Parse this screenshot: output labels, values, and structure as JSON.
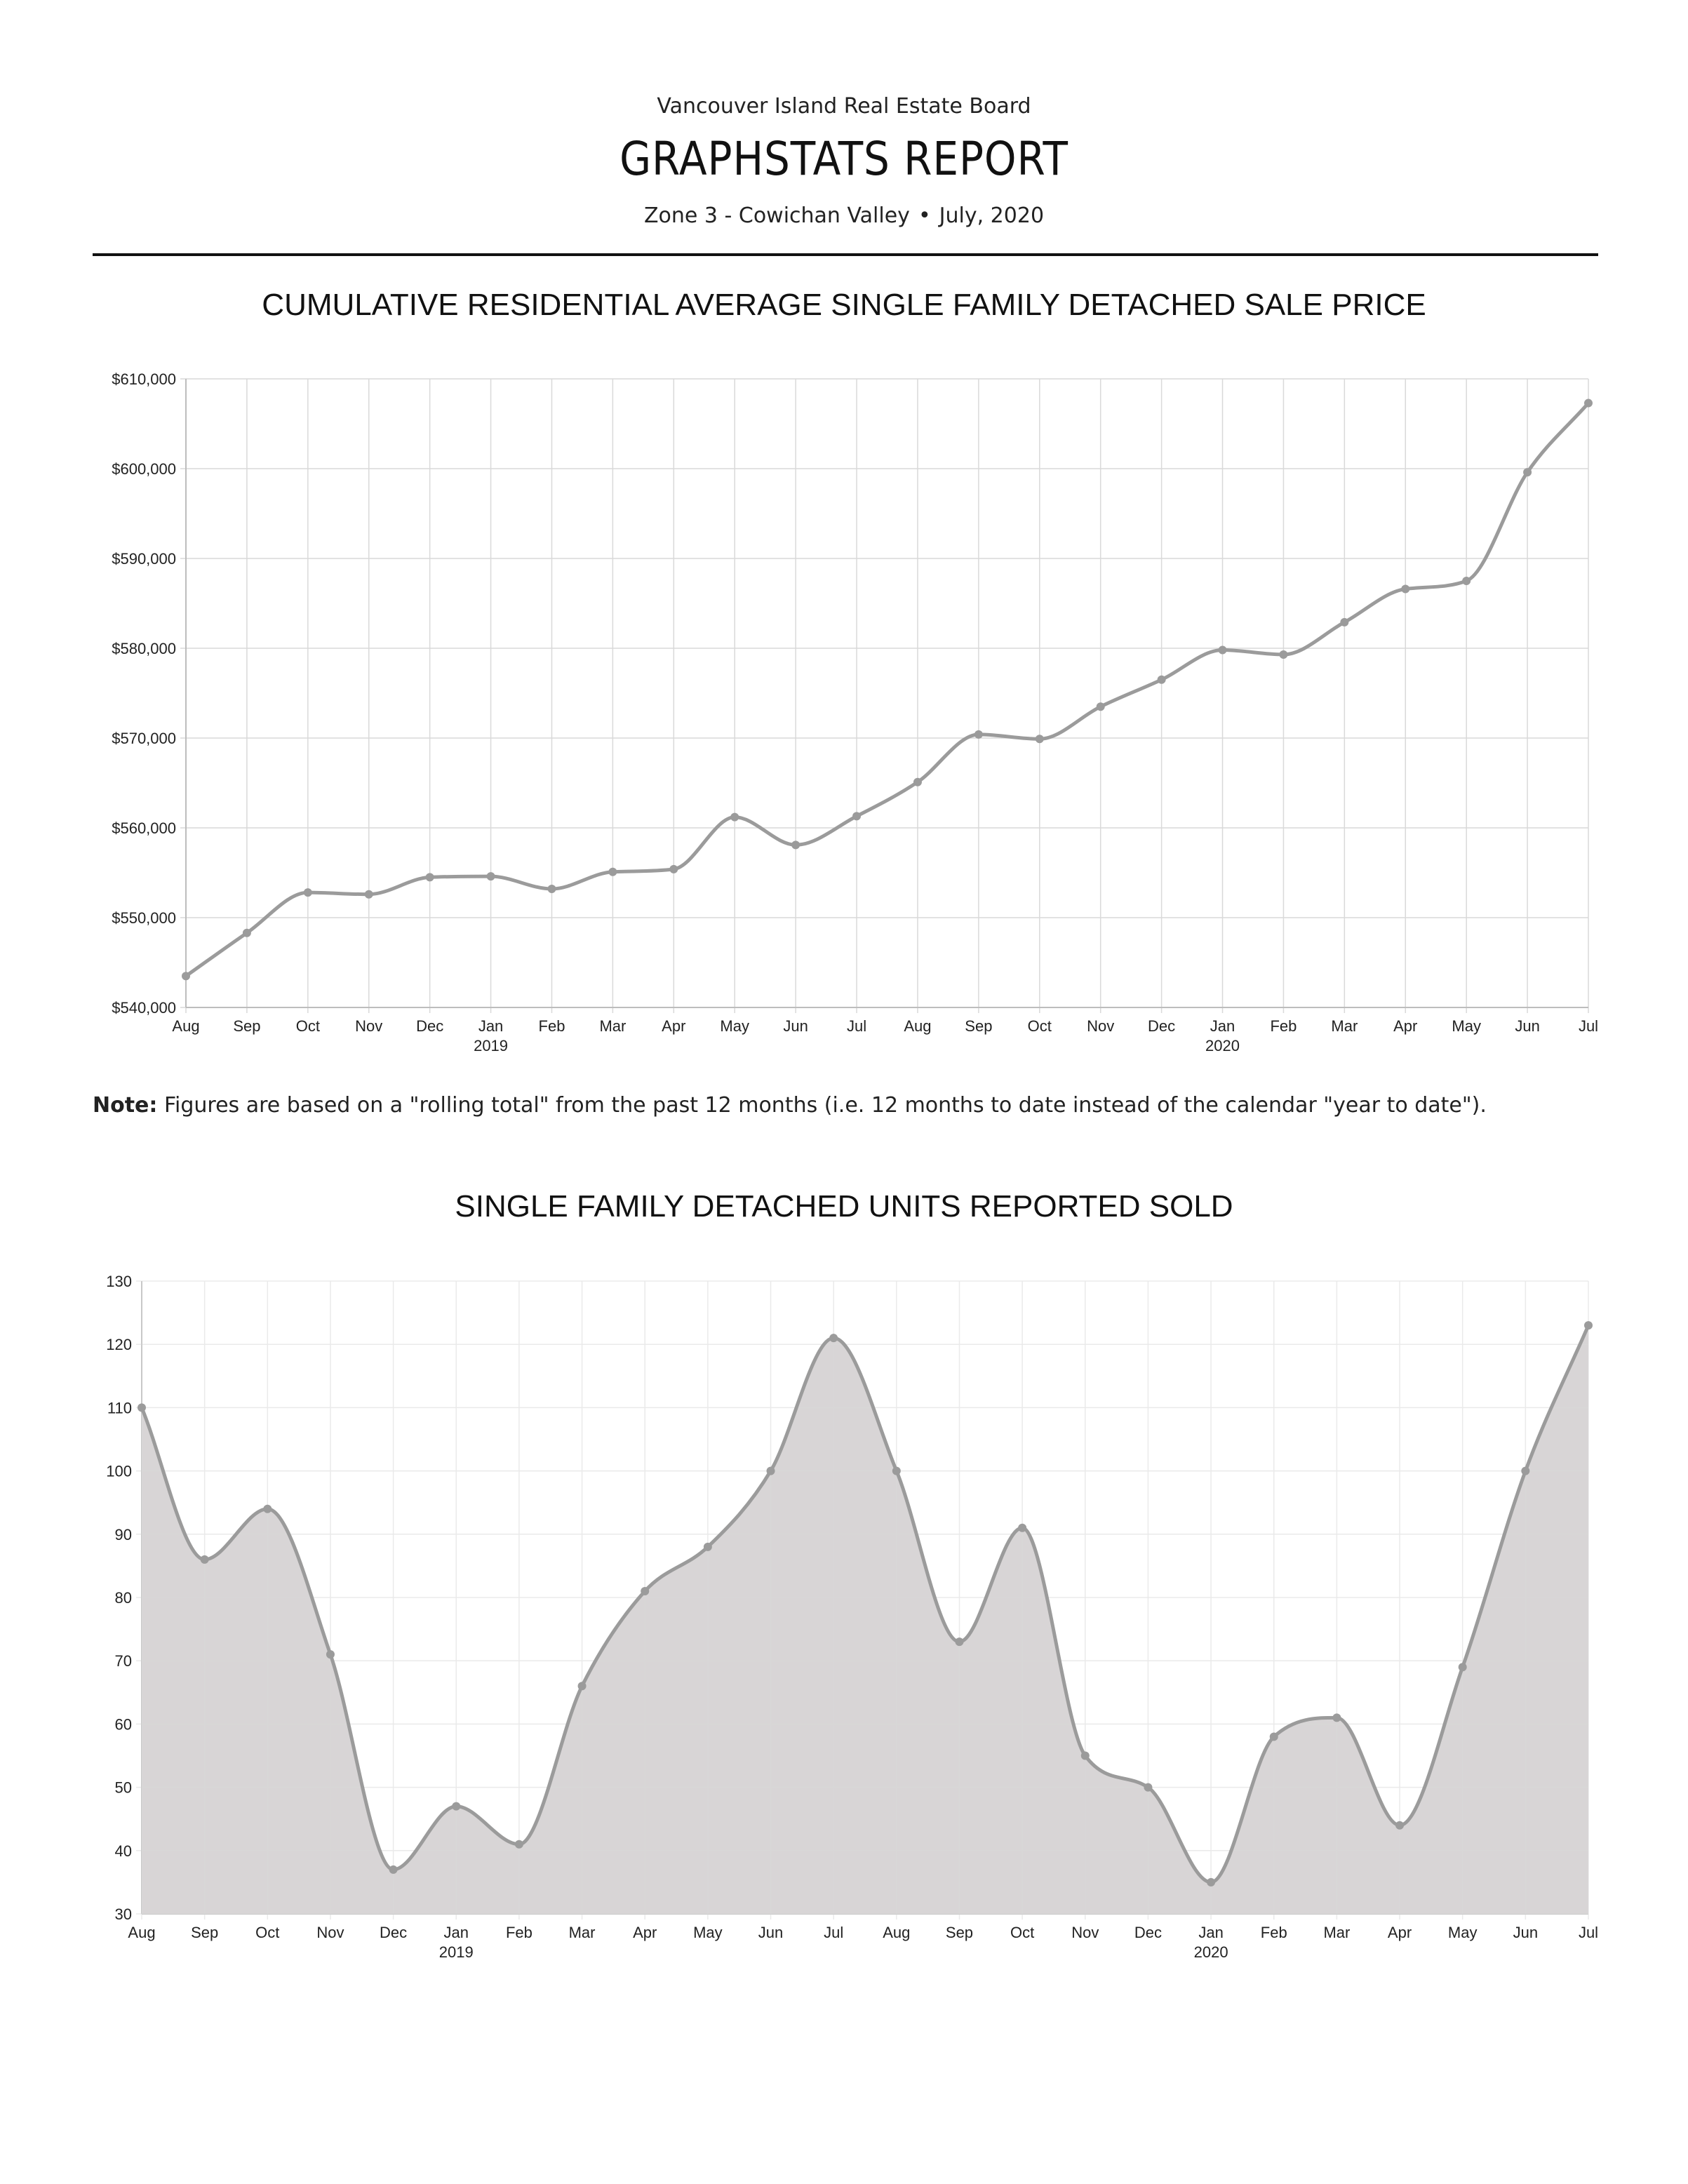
{
  "header": {
    "organization": "Vancouver Island Real Estate Board",
    "report_title": "GRAPHSTATS REPORT",
    "zone": "Zone 3 - Cowichan Valley",
    "separator": "•",
    "date": "July, 2020"
  },
  "note": {
    "label": "Note:",
    "text": "Figures are based on a \"rolling total\" from the past 12 months (i.e. 12 months to date instead of the calendar \"year to date\")."
  },
  "chart_data": [
    {
      "type": "line",
      "title": "CUMULATIVE RESIDENTIAL AVERAGE SINGLE FAMILY DETACHED SALE PRICE",
      "xlabel": "",
      "ylabel": "",
      "categories": [
        "Aug",
        "Sep",
        "Oct",
        "Nov",
        "Dec",
        "Jan",
        "Feb",
        "Mar",
        "Apr",
        "May",
        "Jun",
        "Jul",
        "Aug",
        "Sep",
        "Oct",
        "Nov",
        "Dec",
        "Jan",
        "Feb",
        "Mar",
        "Apr",
        "May",
        "Jun",
        "Jul"
      ],
      "year_labels": [
        {
          "index": 5,
          "label": "2019"
        },
        {
          "index": 17,
          "label": "2020"
        }
      ],
      "ylim": [
        540000,
        610000
      ],
      "yticks": [
        540000,
        550000,
        560000,
        570000,
        580000,
        590000,
        600000,
        610000
      ],
      "ytick_labels": [
        "$540,000",
        "$550,000",
        "$560,000",
        "$570,000",
        "$580,000",
        "$590,000",
        "$600,000",
        "$610,000"
      ],
      "grid": true,
      "series": [
        {
          "color": "#9b9b9b",
          "values": [
            543500,
            548300,
            552800,
            552600,
            554500,
            554600,
            553200,
            555100,
            555400,
            561200,
            558100,
            561300,
            565100,
            570400,
            569900,
            573500,
            576500,
            579800,
            579300,
            582900,
            586600,
            587500,
            599600,
            607300
          ]
        }
      ]
    },
    {
      "type": "area",
      "title": "SINGLE FAMILY DETACHED UNITS REPORTED SOLD",
      "xlabel": "",
      "ylabel": "",
      "categories": [
        "Aug",
        "Sep",
        "Oct",
        "Nov",
        "Dec",
        "Jan",
        "Feb",
        "Mar",
        "Apr",
        "May",
        "Jun",
        "Jul",
        "Aug",
        "Sep",
        "Oct",
        "Nov",
        "Dec",
        "Jan",
        "Feb",
        "Mar",
        "Apr",
        "May",
        "Jun",
        "Jul"
      ],
      "year_labels": [
        {
          "index": 5,
          "label": "2019"
        },
        {
          "index": 17,
          "label": "2020"
        }
      ],
      "ylim": [
        30,
        130
      ],
      "yticks": [
        30,
        40,
        50,
        60,
        70,
        80,
        90,
        100,
        110,
        120,
        130
      ],
      "ytick_labels": [
        "30",
        "40",
        "50",
        "60",
        "70",
        "80",
        "90",
        "100",
        "110",
        "120",
        "130"
      ],
      "grid": true,
      "series": [
        {
          "color": "#9b9b9b",
          "fill": "#d8d5d6",
          "values": [
            110,
            86,
            94,
            71,
            37,
            47,
            41,
            66,
            81,
            88,
            100,
            121,
            100,
            73,
            91,
            55,
            50,
            35,
            58,
            61,
            44,
            69,
            100,
            123
          ]
        }
      ]
    }
  ]
}
